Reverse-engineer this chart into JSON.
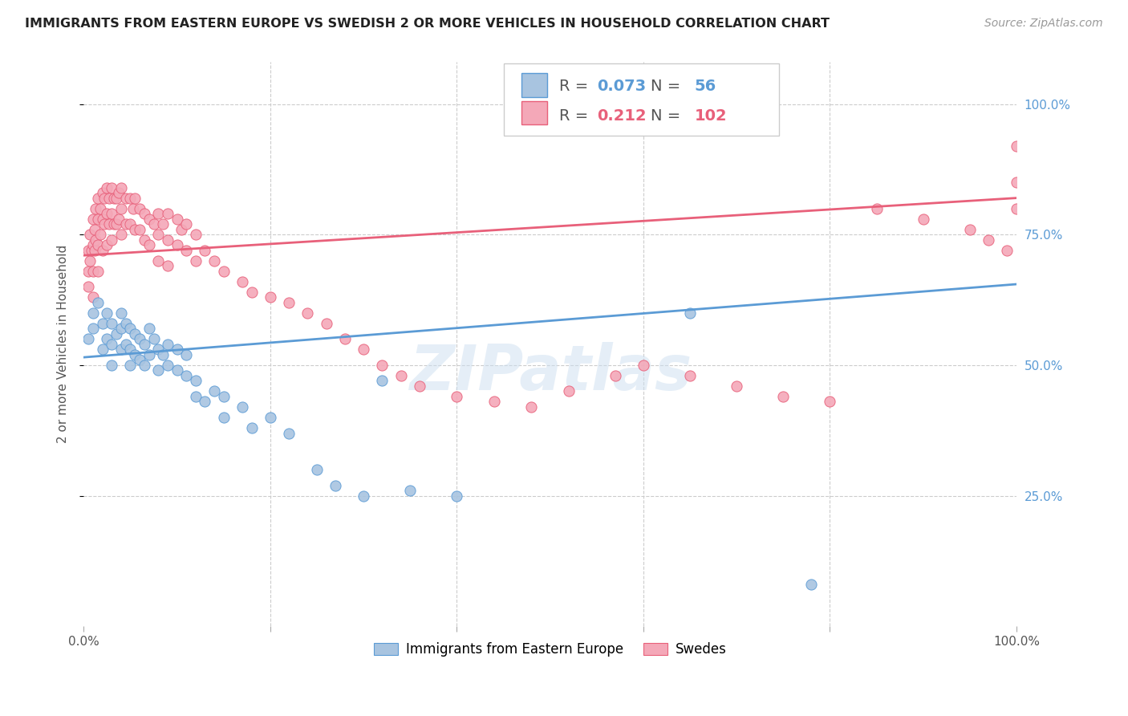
{
  "title": "IMMIGRANTS FROM EASTERN EUROPE VS SWEDISH 2 OR MORE VEHICLES IN HOUSEHOLD CORRELATION CHART",
  "source": "Source: ZipAtlas.com",
  "ylabel": "2 or more Vehicles in Household",
  "yticks": [
    "25.0%",
    "50.0%",
    "75.0%",
    "100.0%"
  ],
  "ytick_vals": [
    0.25,
    0.5,
    0.75,
    1.0
  ],
  "xlim": [
    0.0,
    1.0
  ],
  "ylim": [
    0.0,
    1.08
  ],
  "legend_blue_R": "0.073",
  "legend_blue_N": "56",
  "legend_pink_R": "0.212",
  "legend_pink_N": "102",
  "legend_label_blue": "Immigrants from Eastern Europe",
  "legend_label_pink": "Swedes",
  "blue_color": "#a8c4e0",
  "pink_color": "#f4a8b8",
  "blue_line_color": "#5b9bd5",
  "pink_line_color": "#e8607a",
  "watermark": "ZIPatlas",
  "blue_scatter_x": [
    0.005,
    0.01,
    0.01,
    0.015,
    0.02,
    0.02,
    0.025,
    0.025,
    0.03,
    0.03,
    0.03,
    0.035,
    0.04,
    0.04,
    0.04,
    0.045,
    0.045,
    0.05,
    0.05,
    0.05,
    0.055,
    0.055,
    0.06,
    0.06,
    0.065,
    0.065,
    0.07,
    0.07,
    0.075,
    0.08,
    0.08,
    0.085,
    0.09,
    0.09,
    0.1,
    0.1,
    0.11,
    0.11,
    0.12,
    0.12,
    0.13,
    0.14,
    0.15,
    0.15,
    0.17,
    0.18,
    0.2,
    0.22,
    0.25,
    0.27,
    0.3,
    0.32,
    0.35,
    0.4,
    0.65,
    0.78
  ],
  "blue_scatter_y": [
    0.55,
    0.6,
    0.57,
    0.62,
    0.58,
    0.53,
    0.6,
    0.55,
    0.58,
    0.54,
    0.5,
    0.56,
    0.6,
    0.57,
    0.53,
    0.58,
    0.54,
    0.57,
    0.53,
    0.5,
    0.56,
    0.52,
    0.55,
    0.51,
    0.54,
    0.5,
    0.57,
    0.52,
    0.55,
    0.53,
    0.49,
    0.52,
    0.54,
    0.5,
    0.53,
    0.49,
    0.52,
    0.48,
    0.47,
    0.44,
    0.43,
    0.45,
    0.44,
    0.4,
    0.42,
    0.38,
    0.4,
    0.37,
    0.3,
    0.27,
    0.25,
    0.47,
    0.26,
    0.25,
    0.6,
    0.08
  ],
  "pink_scatter_x": [
    0.005,
    0.005,
    0.005,
    0.007,
    0.007,
    0.008,
    0.01,
    0.01,
    0.01,
    0.01,
    0.012,
    0.012,
    0.013,
    0.013,
    0.015,
    0.015,
    0.015,
    0.015,
    0.018,
    0.018,
    0.02,
    0.02,
    0.02,
    0.022,
    0.022,
    0.025,
    0.025,
    0.025,
    0.027,
    0.027,
    0.03,
    0.03,
    0.03,
    0.032,
    0.032,
    0.035,
    0.035,
    0.038,
    0.038,
    0.04,
    0.04,
    0.04,
    0.045,
    0.045,
    0.05,
    0.05,
    0.053,
    0.055,
    0.055,
    0.06,
    0.06,
    0.065,
    0.065,
    0.07,
    0.07,
    0.075,
    0.08,
    0.08,
    0.08,
    0.085,
    0.09,
    0.09,
    0.09,
    0.1,
    0.1,
    0.105,
    0.11,
    0.11,
    0.12,
    0.12,
    0.13,
    0.14,
    0.15,
    0.17,
    0.18,
    0.2,
    0.22,
    0.24,
    0.26,
    0.28,
    0.3,
    0.32,
    0.34,
    0.36,
    0.4,
    0.44,
    0.48,
    0.52,
    0.57,
    0.6,
    0.65,
    0.7,
    0.75,
    0.8,
    0.85,
    0.9,
    0.95,
    0.97,
    0.99,
    1.0,
    1.0,
    1.0
  ],
  "pink_scatter_y": [
    0.72,
    0.68,
    0.65,
    0.75,
    0.7,
    0.72,
    0.78,
    0.73,
    0.68,
    0.63,
    0.76,
    0.72,
    0.8,
    0.74,
    0.82,
    0.78,
    0.73,
    0.68,
    0.8,
    0.75,
    0.83,
    0.78,
    0.72,
    0.82,
    0.77,
    0.84,
    0.79,
    0.73,
    0.82,
    0.77,
    0.84,
    0.79,
    0.74,
    0.82,
    0.77,
    0.82,
    0.77,
    0.83,
    0.78,
    0.84,
    0.8,
    0.75,
    0.82,
    0.77,
    0.82,
    0.77,
    0.8,
    0.82,
    0.76,
    0.8,
    0.76,
    0.79,
    0.74,
    0.78,
    0.73,
    0.77,
    0.79,
    0.75,
    0.7,
    0.77,
    0.79,
    0.74,
    0.69,
    0.78,
    0.73,
    0.76,
    0.77,
    0.72,
    0.75,
    0.7,
    0.72,
    0.7,
    0.68,
    0.66,
    0.64,
    0.63,
    0.62,
    0.6,
    0.58,
    0.55,
    0.53,
    0.5,
    0.48,
    0.46,
    0.44,
    0.43,
    0.42,
    0.45,
    0.48,
    0.5,
    0.48,
    0.46,
    0.44,
    0.43,
    0.8,
    0.78,
    0.76,
    0.74,
    0.72,
    0.85,
    0.8,
    0.92
  ],
  "blue_trend_x0": 0.0,
  "blue_trend_y0": 0.515,
  "blue_trend_x1": 1.0,
  "blue_trend_y1": 0.655,
  "pink_trend_x0": 0.0,
  "pink_trend_y0": 0.71,
  "pink_trend_x1": 1.0,
  "pink_trend_y1": 0.82
}
